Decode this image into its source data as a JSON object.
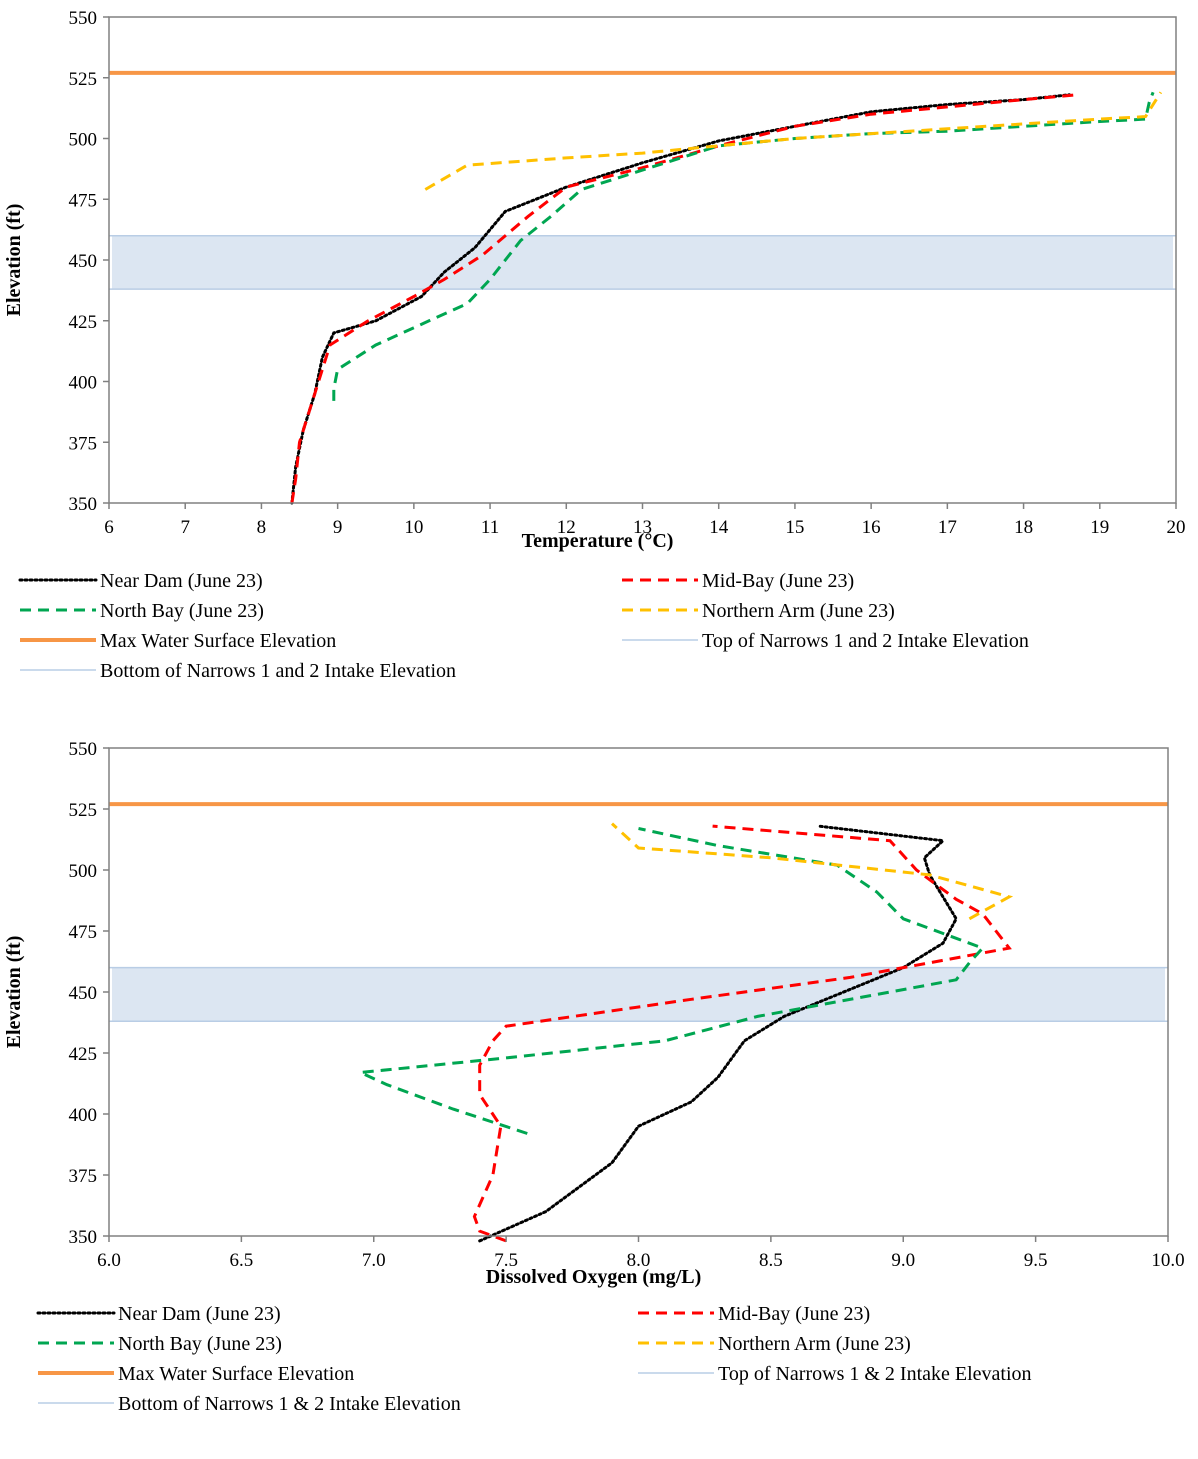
{
  "chart_data": [
    {
      "type": "line",
      "xlabel": "Temperature (°C)",
      "ylabel": "Elevation (ft)",
      "xlim": [
        6,
        20
      ],
      "ylim": [
        350,
        550
      ],
      "xticks": [
        "6",
        "7",
        "8",
        "9",
        "10",
        "11",
        "12",
        "13",
        "14",
        "15",
        "16",
        "17",
        "18",
        "19",
        "20"
      ],
      "yticks": [
        "350",
        "375",
        "400",
        "425",
        "450",
        "475",
        "500",
        "525",
        "550"
      ],
      "grid": false,
      "legend_position": "bottom",
      "intake_band": [
        438,
        460
      ],
      "max_surface": 527,
      "series": [
        {
          "name": "Near Dam (June 23)",
          "color": "#000000",
          "style": "dotted",
          "points": [
            [
              8.4,
              350
            ],
            [
              8.45,
              365
            ],
            [
              8.55,
              380
            ],
            [
              8.7,
              395
            ],
            [
              8.8,
              410
            ],
            [
              8.95,
              420
            ],
            [
              9.5,
              425
            ],
            [
              10.1,
              435
            ],
            [
              10.4,
              445
            ],
            [
              10.8,
              455
            ],
            [
              11.2,
              470
            ],
            [
              11.6,
              475
            ],
            [
              12.0,
              480
            ],
            [
              13.0,
              490
            ],
            [
              14.0,
              499
            ],
            [
              15.0,
              505
            ],
            [
              16.0,
              511
            ],
            [
              17.0,
              514
            ],
            [
              18.0,
              516
            ],
            [
              18.6,
              518
            ]
          ]
        },
        {
          "name": "Mid-Bay (June 23)",
          "color": "#ff0000",
          "style": "dashed",
          "points": [
            [
              8.4,
              350
            ],
            [
              8.45,
              360
            ],
            [
              8.5,
              375
            ],
            [
              8.7,
              395
            ],
            [
              8.9,
              415
            ],
            [
              9.4,
              425
            ],
            [
              10.0,
              435
            ],
            [
              10.4,
              442
            ],
            [
              10.9,
              452
            ],
            [
              11.5,
              468
            ],
            [
              12.0,
              480
            ],
            [
              13.0,
              488
            ],
            [
              14.0,
              497
            ],
            [
              15.0,
              505
            ],
            [
              16.0,
              510
            ],
            [
              17.0,
              513
            ],
            [
              18.0,
              516
            ],
            [
              18.7,
              518
            ]
          ]
        },
        {
          "name": "North Bay (June 23)",
          "color": "#00a651",
          "style": "dashed",
          "points": [
            [
              8.95,
              392
            ],
            [
              8.95,
              397
            ],
            [
              9.0,
              405
            ],
            [
              9.5,
              415
            ],
            [
              10.2,
              425
            ],
            [
              10.7,
              432
            ],
            [
              11.0,
              442
            ],
            [
              11.4,
              458
            ],
            [
              11.8,
              468
            ],
            [
              12.2,
              479
            ],
            [
              13.0,
              487
            ],
            [
              14.0,
              497
            ],
            [
              15.0,
              500
            ],
            [
              16.0,
              502
            ],
            [
              17.0,
              503
            ],
            [
              18.0,
              505
            ],
            [
              19.0,
              507
            ],
            [
              19.6,
              508
            ],
            [
              19.65,
              515
            ],
            [
              19.7,
              519
            ]
          ]
        },
        {
          "name": "Northern Arm (June 23)",
          "color": "#ffc000",
          "style": "dashed",
          "points": [
            [
              10.15,
              479
            ],
            [
              10.7,
              489
            ],
            [
              12.0,
              492
            ],
            [
              13.0,
              494
            ],
            [
              14.0,
              497
            ],
            [
              15.0,
              500
            ],
            [
              16.0,
              502
            ],
            [
              17.0,
              504
            ],
            [
              18.0,
              506
            ],
            [
              19.0,
              508
            ],
            [
              19.6,
              509
            ],
            [
              19.8,
              519
            ]
          ]
        }
      ],
      "legend": [
        {
          "label": "Near Dam (June 23)",
          "color": "#000000",
          "style": "dotted"
        },
        {
          "label": "Mid-Bay (June 23)",
          "color": "#ff0000",
          "style": "dashed"
        },
        {
          "label": "North Bay (June 23)",
          "color": "#00a651",
          "style": "dashed"
        },
        {
          "label": "Northern Arm (June 23)",
          "color": "#ffc000",
          "style": "dashed"
        },
        {
          "label": "Max Water Surface Elevation",
          "color": "#f79646",
          "style": "solid-thick"
        },
        {
          "label": "Top of Narrows 1 and 2 Intake Elevation",
          "color": "#b9cde5",
          "style": "solid-thin"
        },
        {
          "label": "Bottom of Narrows 1 and 2 Intake Elevation",
          "color": "#b9cde5",
          "style": "solid-thin"
        }
      ]
    },
    {
      "type": "line",
      "xlabel": "Dissolved Oxygen (mg/L)",
      "ylabel": "Elevation (ft)",
      "xlim": [
        6.0,
        10.0
      ],
      "ylim": [
        350,
        550
      ],
      "xticks": [
        "6.0",
        "6.5",
        "7.0",
        "7.5",
        "8.0",
        "8.5",
        "9.0",
        "9.5",
        "10.0"
      ],
      "yticks": [
        "350",
        "375",
        "400",
        "425",
        "450",
        "475",
        "500",
        "525",
        "550"
      ],
      "grid": false,
      "legend_position": "bottom",
      "intake_band": [
        438,
        460
      ],
      "max_surface": 527,
      "series": [
        {
          "name": "Near Dam (June 23)",
          "color": "#000000",
          "style": "dotted",
          "points": [
            [
              7.4,
              348
            ],
            [
              7.65,
              360
            ],
            [
              7.9,
              380
            ],
            [
              8.0,
              395
            ],
            [
              8.2,
              405
            ],
            [
              8.3,
              415
            ],
            [
              8.4,
              430
            ],
            [
              8.55,
              440
            ],
            [
              9.0,
              460
            ],
            [
              9.15,
              470
            ],
            [
              9.2,
              480
            ],
            [
              9.1,
              498
            ],
            [
              9.08,
              505
            ],
            [
              9.15,
              512
            ],
            [
              8.68,
              518
            ]
          ]
        },
        {
          "name": "Mid-Bay (June 23)",
          "color": "#ff0000",
          "style": "dashed",
          "points": [
            [
              7.5,
              348
            ],
            [
              7.4,
              352
            ],
            [
              7.38,
              358
            ],
            [
              7.45,
              375
            ],
            [
              7.48,
              395
            ],
            [
              7.4,
              408
            ],
            [
              7.4,
              420
            ],
            [
              7.45,
              430
            ],
            [
              7.5,
              436
            ],
            [
              8.2,
              447
            ],
            [
              8.8,
              456
            ],
            [
              9.05,
              461
            ],
            [
              9.4,
              468
            ],
            [
              9.3,
              482
            ],
            [
              9.2,
              488
            ],
            [
              9.05,
              500
            ],
            [
              8.95,
              512
            ],
            [
              8.28,
              518
            ]
          ]
        },
        {
          "name": "North Bay (June 23)",
          "color": "#00a651",
          "style": "dashed",
          "points": [
            [
              7.58,
              392
            ],
            [
              7.3,
              402
            ],
            [
              7.05,
              412
            ],
            [
              6.95,
              417
            ],
            [
              7.5,
              423
            ],
            [
              8.1,
              430
            ],
            [
              8.45,
              440
            ],
            [
              8.85,
              448
            ],
            [
              9.2,
              455
            ],
            [
              9.25,
              462
            ],
            [
              9.3,
              468
            ],
            [
              9.2,
              472
            ],
            [
              9.0,
              480
            ],
            [
              8.9,
              491
            ],
            [
              8.75,
              502
            ],
            [
              8.3,
              510
            ],
            [
              8.0,
              517
            ]
          ]
        },
        {
          "name": "Northern Arm (June 23)",
          "color": "#ffc000",
          "style": "dashed",
          "points": [
            [
              9.25,
              480
            ],
            [
              9.4,
              489
            ],
            [
              9.1,
              498
            ],
            [
              8.5,
              505
            ],
            [
              8.0,
              509
            ],
            [
              7.9,
              519
            ]
          ]
        }
      ],
      "legend": [
        {
          "label": "Near Dam (June 23)",
          "color": "#000000",
          "style": "dotted"
        },
        {
          "label": "Mid-Bay (June 23)",
          "color": "#ff0000",
          "style": "dashed"
        },
        {
          "label": "North Bay (June 23)",
          "color": "#00a651",
          "style": "dashed"
        },
        {
          "label": "Northern Arm (June 23)",
          "color": "#ffc000",
          "style": "dashed"
        },
        {
          "label": "Max Water Surface Elevation",
          "color": "#f79646",
          "style": "solid-thick"
        },
        {
          "label": "Top of Narrows 1 & 2 Intake Elevation",
          "color": "#b9cde5",
          "style": "solid-thin"
        },
        {
          "label": "Bottom of Narrows 1 & 2 Intake Elevation",
          "color": "#b9cde5",
          "style": "solid-thin"
        }
      ]
    }
  ]
}
